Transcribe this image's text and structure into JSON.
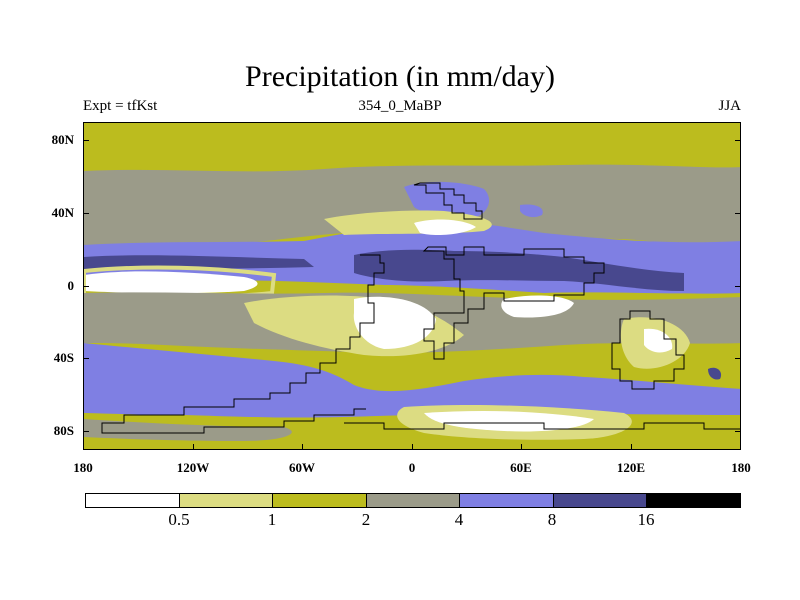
{
  "title": "Precipitation (in mm/day)",
  "subtitle": {
    "left": "Expt = tfKst",
    "center": "354_0_MaBP",
    "right": "JJA"
  },
  "map": {
    "y_labels": [
      "80N",
      "40N",
      "0",
      "40S",
      "80S"
    ],
    "x_labels": [
      "180",
      "120W",
      "60W",
      "0",
      "60E",
      "120E",
      "180"
    ],
    "units": "mm/day"
  },
  "legend": {
    "levels": [
      "0.5",
      "1",
      "2",
      "4",
      "8",
      "16"
    ],
    "colors": [
      "#ffffff",
      "#dcdc82",
      "#bcbc1e",
      "#9b9b89",
      "#7f7fe3",
      "#48488e",
      "#000000"
    ]
  }
}
